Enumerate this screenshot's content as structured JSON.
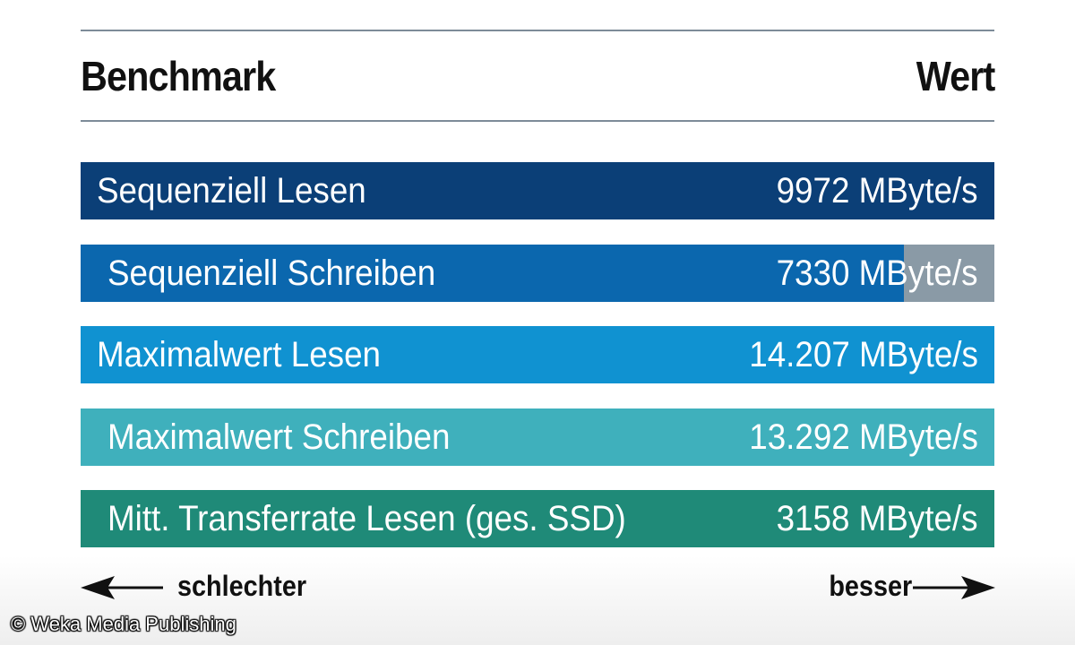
{
  "chart_data": {
    "type": "bar",
    "orientation": "horizontal",
    "header_left": "Benchmark",
    "header_right": "Wert",
    "unit": "MByte/s",
    "categories": [
      "Sequenziell Lesen",
      "Sequenziell Schreiben",
      "Maximalwert Lesen",
      "Maximalwert Schreiben",
      "Mitt. Transferrate Lesen (ges. SSD)"
    ],
    "values": [
      9972,
      7330,
      14207,
      13292,
      3158
    ],
    "value_labels": [
      "9972 MByte/s",
      "7330 MByte/s",
      "14.207 MByte/s",
      "13.292 MByte/s",
      "3158 MByte/s"
    ],
    "fill_fraction": [
      1.0,
      0.901,
      1.0,
      1.0,
      1.0
    ],
    "colors": [
      "#0b3f77",
      "#0b67ae",
      "#1092d1",
      "#3fb0bc",
      "#1f8a78"
    ],
    "track_color": "#8a9aa6",
    "axis_left_label": "schlechter",
    "axis_right_label": "besser"
  },
  "credit": "© Weka Media Publishing"
}
